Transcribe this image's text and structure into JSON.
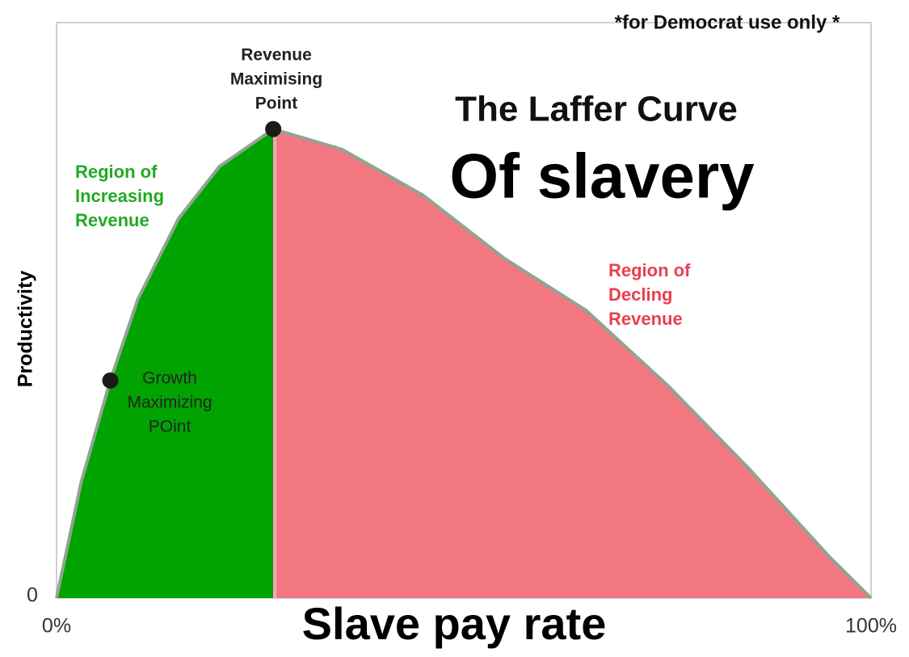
{
  "chart_data": {
    "type": "area",
    "title": "The Laffer Curve",
    "subtitle": "Of slavery",
    "note": "*for Democrat use only *",
    "x_label": "Slave pay rate",
    "y_label": "Productivity",
    "x": [
      0,
      3,
      6.6,
      10,
      15,
      20,
      26.6,
      35,
      45,
      55,
      65,
      75,
      85,
      95,
      100
    ],
    "values": [
      0,
      20,
      37.8,
      52,
      66,
      75,
      81.5,
      78,
      70,
      59,
      50,
      37,
      22.5,
      7,
      0
    ],
    "area_colors": [
      "#00a300",
      "#f27780"
    ],
    "line_color": "#8fa58f",
    "xlim": [
      0,
      100
    ],
    "ylim": [
      0,
      100
    ],
    "xticks": [
      {
        "value": 0,
        "label": "0%"
      },
      {
        "value": 100,
        "label": "100%"
      }
    ],
    "yticks": [
      0
    ],
    "points": [
      {
        "x": 26.6,
        "y": 81.5,
        "lines": [
          "Revenue",
          "Maximising",
          "Point"
        ]
      },
      {
        "x": 6.6,
        "y": 37.8,
        "lines": [
          "Growth",
          "Maximizing",
          "POint"
        ]
      }
    ],
    "regions": [
      {
        "lines": [
          "Region of",
          "Increasing",
          "Revenue"
        ],
        "color": "#22aa22"
      },
      {
        "lines": [
          "Region of",
          "Decling",
          "Revenue"
        ],
        "color": "#e8404f"
      }
    ]
  }
}
